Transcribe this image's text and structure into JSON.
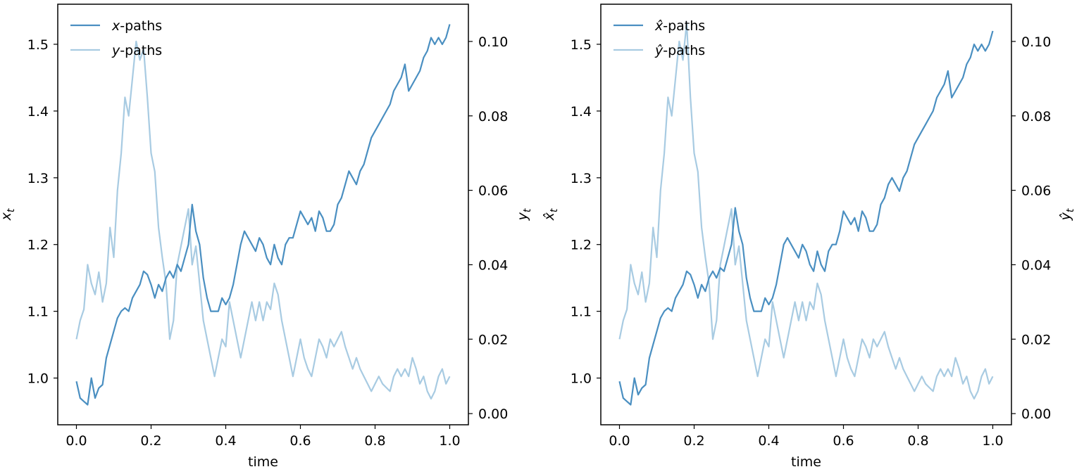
{
  "chart_data": [
    {
      "type": "line",
      "xlabel": "time",
      "ylabel_left": "x_t",
      "ylabel_right": "y_t",
      "xlim": [
        -0.05,
        1.05
      ],
      "ylim_left": [
        0.93,
        1.56
      ],
      "ylim_right": [
        -0.003,
        0.11
      ],
      "xticks": [
        "0.0",
        "0.2",
        "0.4",
        "0.6",
        "0.8",
        "1.0"
      ],
      "yticks_left": [
        "1.0",
        "1.1",
        "1.2",
        "1.3",
        "1.4",
        "1.5"
      ],
      "yticks_right": [
        "0.00",
        "0.02",
        "0.04",
        "0.06",
        "0.08",
        "0.10"
      ],
      "legend": {
        "placement": "upper-left",
        "entries": [
          "x-paths",
          "y-paths"
        ]
      },
      "grid": false,
      "series": [
        {
          "name": "x-paths",
          "axis": "left",
          "color": "#4a8fc1",
          "x": [
            0.0,
            0.01,
            0.02,
            0.03,
            0.04,
            0.05,
            0.06,
            0.07,
            0.08,
            0.09,
            0.1,
            0.11,
            0.12,
            0.13,
            0.14,
            0.15,
            0.16,
            0.17,
            0.18,
            0.19,
            0.2,
            0.21,
            0.22,
            0.23,
            0.24,
            0.25,
            0.26,
            0.27,
            0.28,
            0.29,
            0.3,
            0.31,
            0.32,
            0.33,
            0.34,
            0.35,
            0.36,
            0.37,
            0.38,
            0.39,
            0.4,
            0.41,
            0.42,
            0.43,
            0.44,
            0.45,
            0.46,
            0.47,
            0.48,
            0.49,
            0.5,
            0.51,
            0.52,
            0.53,
            0.54,
            0.55,
            0.56,
            0.57,
            0.58,
            0.59,
            0.6,
            0.61,
            0.62,
            0.63,
            0.64,
            0.65,
            0.66,
            0.67,
            0.68,
            0.69,
            0.7,
            0.71,
            0.72,
            0.73,
            0.74,
            0.75,
            0.76,
            0.77,
            0.78,
            0.79,
            0.8,
            0.81,
            0.82,
            0.83,
            0.84,
            0.85,
            0.86,
            0.87,
            0.88,
            0.89,
            0.9,
            0.91,
            0.92,
            0.93,
            0.94,
            0.95,
            0.96,
            0.97,
            0.98,
            0.99,
            1.0
          ],
          "y": [
            0.995,
            0.97,
            0.965,
            0.96,
            1.0,
            0.97,
            0.985,
            0.99,
            1.03,
            1.05,
            1.07,
            1.09,
            1.1,
            1.105,
            1.1,
            1.12,
            1.13,
            1.14,
            1.16,
            1.155,
            1.14,
            1.12,
            1.14,
            1.13,
            1.15,
            1.16,
            1.15,
            1.17,
            1.16,
            1.18,
            1.2,
            1.26,
            1.22,
            1.2,
            1.15,
            1.12,
            1.1,
            1.1,
            1.1,
            1.12,
            1.11,
            1.12,
            1.14,
            1.17,
            1.2,
            1.22,
            1.21,
            1.2,
            1.19,
            1.21,
            1.2,
            1.18,
            1.17,
            1.2,
            1.18,
            1.17,
            1.2,
            1.21,
            1.21,
            1.23,
            1.25,
            1.24,
            1.23,
            1.24,
            1.22,
            1.25,
            1.24,
            1.22,
            1.22,
            1.23,
            1.26,
            1.27,
            1.29,
            1.31,
            1.3,
            1.29,
            1.31,
            1.32,
            1.34,
            1.36,
            1.37,
            1.38,
            1.39,
            1.4,
            1.41,
            1.43,
            1.44,
            1.45,
            1.47,
            1.43,
            1.44,
            1.45,
            1.46,
            1.48,
            1.49,
            1.51,
            1.5,
            1.51,
            1.5,
            1.51,
            1.53
          ]
        },
        {
          "name": "y-paths",
          "axis": "right",
          "color": "#a8cbe2",
          "x": [
            0.0,
            0.01,
            0.02,
            0.03,
            0.04,
            0.05,
            0.06,
            0.07,
            0.08,
            0.09,
            0.1,
            0.11,
            0.12,
            0.13,
            0.14,
            0.15,
            0.16,
            0.17,
            0.18,
            0.19,
            0.2,
            0.21,
            0.22,
            0.23,
            0.24,
            0.25,
            0.26,
            0.27,
            0.28,
            0.29,
            0.3,
            0.31,
            0.32,
            0.33,
            0.34,
            0.35,
            0.36,
            0.37,
            0.38,
            0.39,
            0.4,
            0.41,
            0.42,
            0.43,
            0.44,
            0.45,
            0.46,
            0.47,
            0.48,
            0.49,
            0.5,
            0.51,
            0.52,
            0.53,
            0.54,
            0.55,
            0.56,
            0.57,
            0.58,
            0.59,
            0.6,
            0.61,
            0.62,
            0.63,
            0.64,
            0.65,
            0.66,
            0.67,
            0.68,
            0.69,
            0.7,
            0.71,
            0.72,
            0.73,
            0.74,
            0.75,
            0.76,
            0.77,
            0.78,
            0.79,
            0.8,
            0.81,
            0.82,
            0.83,
            0.84,
            0.85,
            0.86,
            0.87,
            0.88,
            0.89,
            0.9,
            0.91,
            0.92,
            0.93,
            0.94,
            0.95,
            0.96,
            0.97,
            0.98,
            0.99,
            1.0
          ],
          "y": [
            0.02,
            0.025,
            0.028,
            0.04,
            0.035,
            0.032,
            0.038,
            0.03,
            0.035,
            0.05,
            0.042,
            0.06,
            0.07,
            0.085,
            0.08,
            0.09,
            0.1,
            0.095,
            0.098,
            0.085,
            0.07,
            0.065,
            0.05,
            0.042,
            0.035,
            0.02,
            0.025,
            0.04,
            0.045,
            0.05,
            0.055,
            0.04,
            0.045,
            0.035,
            0.025,
            0.02,
            0.015,
            0.01,
            0.015,
            0.02,
            0.018,
            0.03,
            0.025,
            0.02,
            0.015,
            0.02,
            0.025,
            0.03,
            0.025,
            0.03,
            0.025,
            0.03,
            0.028,
            0.035,
            0.032,
            0.025,
            0.02,
            0.015,
            0.01,
            0.015,
            0.02,
            0.015,
            0.012,
            0.01,
            0.015,
            0.02,
            0.018,
            0.015,
            0.02,
            0.018,
            0.02,
            0.022,
            0.018,
            0.015,
            0.012,
            0.015,
            0.012,
            0.01,
            0.008,
            0.006,
            0.008,
            0.01,
            0.008,
            0.007,
            0.006,
            0.01,
            0.012,
            0.01,
            0.012,
            0.01,
            0.015,
            0.012,
            0.008,
            0.01,
            0.006,
            0.004,
            0.006,
            0.01,
            0.012,
            0.008,
            0.01
          ]
        }
      ]
    },
    {
      "type": "line",
      "xlabel": "time",
      "ylabel_left": "x̂_t",
      "ylabel_right": "ŷ_t",
      "xlim": [
        -0.05,
        1.05
      ],
      "ylim_left": [
        0.93,
        1.56
      ],
      "ylim_right": [
        -0.003,
        0.11
      ],
      "xticks": [
        "0.0",
        "0.2",
        "0.4",
        "0.6",
        "0.8",
        "1.0"
      ],
      "yticks_left": [
        "1.0",
        "1.1",
        "1.2",
        "1.3",
        "1.4",
        "1.5"
      ],
      "yticks_right": [
        "0.00",
        "0.02",
        "0.04",
        "0.06",
        "0.08",
        "0.10"
      ],
      "legend": {
        "placement": "upper-left",
        "entries": [
          "x̂-paths",
          "ŷ-paths"
        ]
      },
      "grid": false,
      "series": [
        {
          "name": "x̂-paths",
          "axis": "left",
          "color": "#4a8fc1",
          "x": [
            0.0,
            0.01,
            0.02,
            0.03,
            0.04,
            0.05,
            0.06,
            0.07,
            0.08,
            0.09,
            0.1,
            0.11,
            0.12,
            0.13,
            0.14,
            0.15,
            0.16,
            0.17,
            0.18,
            0.19,
            0.2,
            0.21,
            0.22,
            0.23,
            0.24,
            0.25,
            0.26,
            0.27,
            0.28,
            0.29,
            0.3,
            0.31,
            0.32,
            0.33,
            0.34,
            0.35,
            0.36,
            0.37,
            0.38,
            0.39,
            0.4,
            0.41,
            0.42,
            0.43,
            0.44,
            0.45,
            0.46,
            0.47,
            0.48,
            0.49,
            0.5,
            0.51,
            0.52,
            0.53,
            0.54,
            0.55,
            0.56,
            0.57,
            0.58,
            0.59,
            0.6,
            0.61,
            0.62,
            0.63,
            0.64,
            0.65,
            0.66,
            0.67,
            0.68,
            0.69,
            0.7,
            0.71,
            0.72,
            0.73,
            0.74,
            0.75,
            0.76,
            0.77,
            0.78,
            0.79,
            0.8,
            0.81,
            0.82,
            0.83,
            0.84,
            0.85,
            0.86,
            0.87,
            0.88,
            0.89,
            0.9,
            0.91,
            0.92,
            0.93,
            0.94,
            0.95,
            0.96,
            0.97,
            0.98,
            0.99,
            1.0
          ],
          "y": [
            0.995,
            0.97,
            0.965,
            0.96,
            1.0,
            0.975,
            0.985,
            0.99,
            1.03,
            1.05,
            1.07,
            1.09,
            1.1,
            1.105,
            1.1,
            1.12,
            1.13,
            1.14,
            1.16,
            1.155,
            1.14,
            1.12,
            1.14,
            1.13,
            1.15,
            1.16,
            1.15,
            1.165,
            1.16,
            1.18,
            1.2,
            1.255,
            1.22,
            1.2,
            1.15,
            1.12,
            1.1,
            1.1,
            1.1,
            1.12,
            1.11,
            1.12,
            1.14,
            1.17,
            1.2,
            1.21,
            1.2,
            1.19,
            1.18,
            1.2,
            1.19,
            1.17,
            1.16,
            1.19,
            1.17,
            1.16,
            1.19,
            1.2,
            1.2,
            1.22,
            1.25,
            1.24,
            1.23,
            1.24,
            1.22,
            1.25,
            1.24,
            1.22,
            1.22,
            1.23,
            1.26,
            1.27,
            1.29,
            1.3,
            1.29,
            1.28,
            1.3,
            1.31,
            1.33,
            1.35,
            1.36,
            1.37,
            1.38,
            1.39,
            1.4,
            1.42,
            1.43,
            1.44,
            1.46,
            1.42,
            1.43,
            1.44,
            1.45,
            1.47,
            1.48,
            1.5,
            1.49,
            1.5,
            1.49,
            1.5,
            1.52
          ]
        },
        {
          "name": "ŷ-paths",
          "axis": "right",
          "color": "#a8cbe2",
          "x": [
            0.0,
            0.01,
            0.02,
            0.03,
            0.04,
            0.05,
            0.06,
            0.07,
            0.08,
            0.09,
            0.1,
            0.11,
            0.12,
            0.13,
            0.14,
            0.15,
            0.16,
            0.17,
            0.18,
            0.19,
            0.2,
            0.21,
            0.22,
            0.23,
            0.24,
            0.25,
            0.26,
            0.27,
            0.28,
            0.29,
            0.3,
            0.31,
            0.32,
            0.33,
            0.34,
            0.35,
            0.36,
            0.37,
            0.38,
            0.39,
            0.4,
            0.41,
            0.42,
            0.43,
            0.44,
            0.45,
            0.46,
            0.47,
            0.48,
            0.49,
            0.5,
            0.51,
            0.52,
            0.53,
            0.54,
            0.55,
            0.56,
            0.57,
            0.58,
            0.59,
            0.6,
            0.61,
            0.62,
            0.63,
            0.64,
            0.65,
            0.66,
            0.67,
            0.68,
            0.69,
            0.7,
            0.71,
            0.72,
            0.73,
            0.74,
            0.75,
            0.76,
            0.77,
            0.78,
            0.79,
            0.8,
            0.81,
            0.82,
            0.83,
            0.84,
            0.85,
            0.86,
            0.87,
            0.88,
            0.89,
            0.9,
            0.91,
            0.92,
            0.93,
            0.94,
            0.95,
            0.96,
            0.97,
            0.98,
            0.99,
            1.0
          ],
          "y": [
            0.02,
            0.025,
            0.028,
            0.04,
            0.035,
            0.032,
            0.038,
            0.03,
            0.035,
            0.05,
            0.042,
            0.06,
            0.07,
            0.085,
            0.08,
            0.09,
            0.1,
            0.095,
            0.105,
            0.085,
            0.07,
            0.065,
            0.05,
            0.042,
            0.035,
            0.02,
            0.025,
            0.04,
            0.045,
            0.05,
            0.055,
            0.04,
            0.045,
            0.035,
            0.025,
            0.02,
            0.015,
            0.01,
            0.015,
            0.02,
            0.018,
            0.03,
            0.025,
            0.02,
            0.015,
            0.02,
            0.025,
            0.03,
            0.025,
            0.03,
            0.025,
            0.03,
            0.028,
            0.035,
            0.032,
            0.025,
            0.02,
            0.015,
            0.01,
            0.015,
            0.02,
            0.015,
            0.012,
            0.01,
            0.015,
            0.02,
            0.018,
            0.015,
            0.02,
            0.018,
            0.02,
            0.022,
            0.018,
            0.015,
            0.012,
            0.015,
            0.012,
            0.01,
            0.008,
            0.006,
            0.008,
            0.01,
            0.008,
            0.007,
            0.006,
            0.01,
            0.012,
            0.01,
            0.012,
            0.01,
            0.015,
            0.012,
            0.008,
            0.01,
            0.006,
            0.004,
            0.006,
            0.01,
            0.012,
            0.008,
            0.01
          ]
        }
      ]
    }
  ]
}
